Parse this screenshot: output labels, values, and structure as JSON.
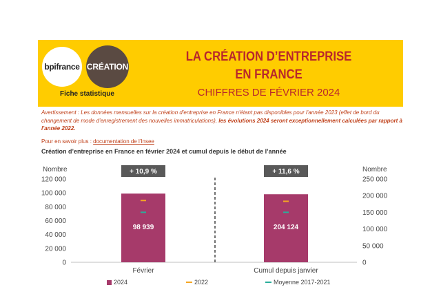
{
  "header": {
    "logo_left": "bpifrance",
    "logo_right": "CRÉATION",
    "fiche_label": "Fiche statistique",
    "title_line1": "LA CRÉATION D’ENTREPRISE",
    "title_line2": "EN FRANCE",
    "subtitle": "CHIFFRES DE FÉVRIER 2024"
  },
  "warning": {
    "text": "Avertissement : Les données mensuelles sur la création d'entreprise en France n'étant pas disponibles pour l'année 2023 (effet de bord du changement de mode d'enregistrement des nouvelles immatriculations),",
    "bold": " les évolutions 2024 seront exceptionnellement calculées par rapport à l'année 2022."
  },
  "more": {
    "label": "Pour en savoir plus : ",
    "link": "documentation de l'Insee"
  },
  "chart_title": "Création d’entreprise en France en février 2024 et cumul depuis le début de l’année",
  "colors": {
    "bar_2024": "#A63A6A",
    "marker_2022": "#F5A623",
    "marker_moyenne": "#2AAE9B",
    "badge": "#595959",
    "banner": "#FFCC00"
  },
  "chart_data": {
    "type": "bar",
    "categories": [
      "Février",
      "Cumul depuis janvier"
    ],
    "y_left": {
      "label": "Nombre",
      "ticks": [
        "120 000",
        "100 000",
        "80 000",
        "60 000",
        "40 000",
        "20 000",
        "0"
      ],
      "range": [
        0,
        120000
      ]
    },
    "y_right": {
      "label": "Nombre",
      "ticks": [
        "250 000",
        "200 000",
        "150 000",
        "100 000",
        "50 000",
        "0"
      ],
      "range": [
        0,
        250000
      ]
    },
    "series": [
      {
        "name": "2024",
        "type": "bar",
        "values": [
          98939,
          204124
        ],
        "labels": [
          "98 939",
          "204 124"
        ]
      },
      {
        "name": "2022",
        "type": "marker",
        "values": [
          89000,
          183000
        ]
      },
      {
        "name": "Moyenne 2017-2021",
        "type": "marker",
        "values": [
          72000,
          150000
        ]
      }
    ],
    "annotations": [
      "+ 10,9 %",
      "+ 11,6 %"
    ],
    "legend_position": "bottom"
  }
}
